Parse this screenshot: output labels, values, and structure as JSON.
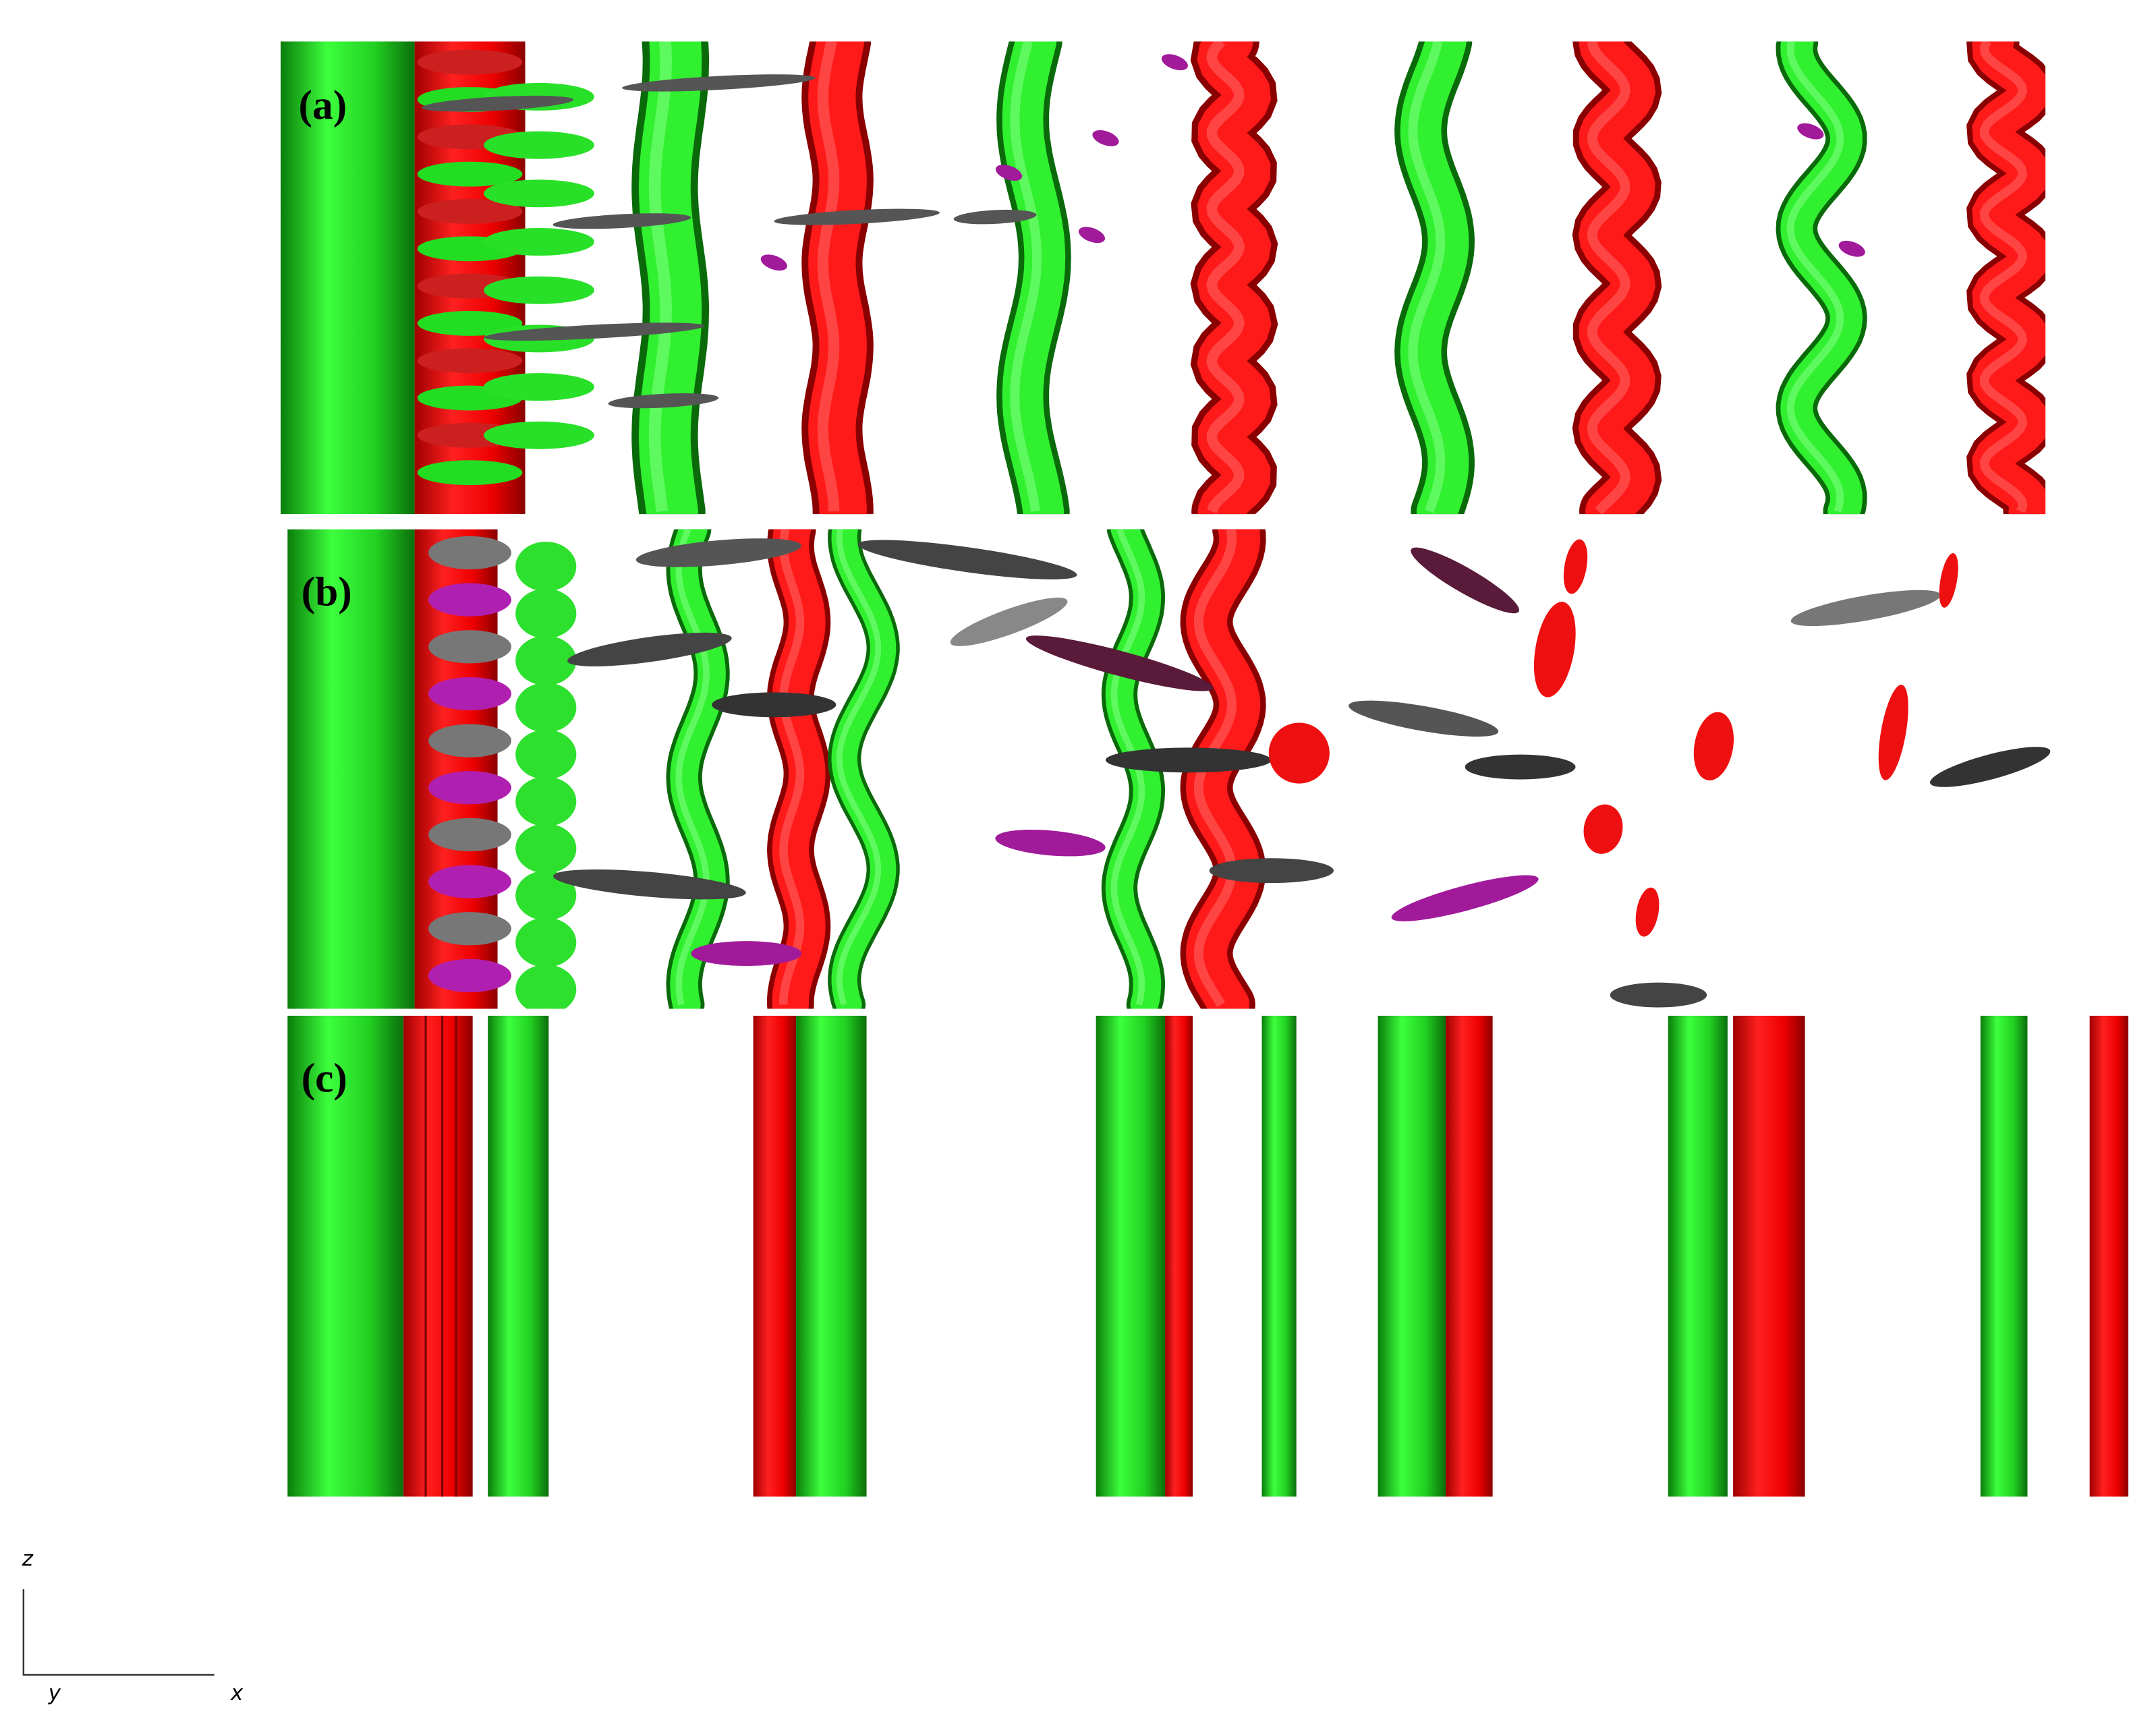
{
  "panels": [
    {
      "label": "(a)"
    },
    {
      "label": "(b)"
    },
    {
      "label": "(c)"
    }
  ],
  "axes": {
    "vertical": "z",
    "depth": "y",
    "horizontal": "x"
  }
}
